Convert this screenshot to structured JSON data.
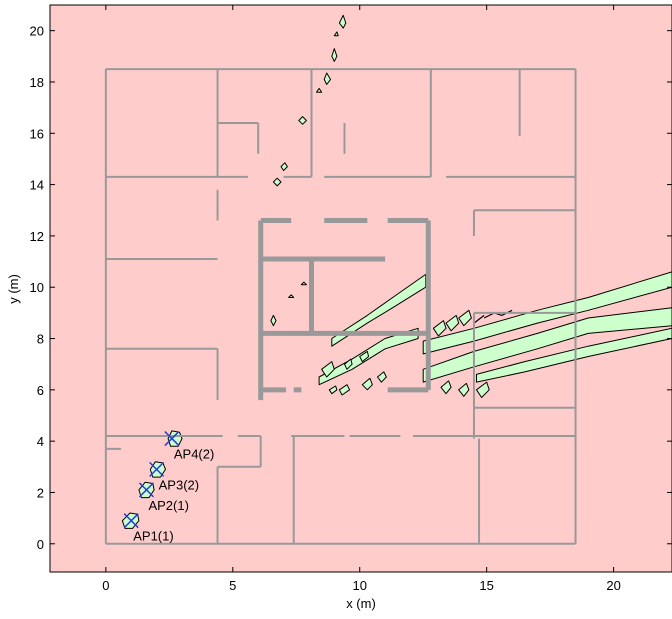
{
  "chart_data": {
    "type": "heatmap",
    "xlabel": "x (m)",
    "ylabel": "y (m)",
    "xlim": [
      -2.2,
      22.3
    ],
    "ylim": [
      -1.1,
      21
    ],
    "x_ticks": [
      0,
      5,
      10,
      15,
      20
    ],
    "y_ticks": [
      0,
      2,
      4,
      6,
      8,
      10,
      12,
      14,
      16,
      18,
      20
    ],
    "grid": false,
    "colors": {
      "background": "#ffcccc",
      "region": "#ccffcc",
      "wall_thin": "#999999",
      "wall_thick": "#999999",
      "ap_marker": "#1f3fd6",
      "contour": "#000000"
    },
    "access_points": [
      {
        "label": "AP1(1)",
        "x": 1.0,
        "y": 0.9
      },
      {
        "label": "AP2(1)",
        "x": 1.6,
        "y": 2.1
      },
      {
        "label": "AP3(2)",
        "x": 2.0,
        "y": 2.9
      },
      {
        "label": "AP4(2)",
        "x": 2.6,
        "y": 4.1
      }
    ],
    "walls_thin": [
      [
        [
          0,
          0
        ],
        [
          18.5,
          0
        ]
      ],
      [
        [
          18.5,
          0
        ],
        [
          18.5,
          18.5
        ]
      ],
      [
        [
          0,
          18.5
        ],
        [
          18.5,
          18.5
        ]
      ],
      [
        [
          0,
          0
        ],
        [
          0,
          18.5
        ]
      ],
      [
        [
          0,
          14.3
        ],
        [
          5.6,
          14.3
        ]
      ],
      [
        [
          7,
          14.3
        ],
        [
          8.1,
          14.3
        ]
      ],
      [
        [
          8.6,
          14.3
        ],
        [
          12.8,
          14.3
        ]
      ],
      [
        [
          13.4,
          14.3
        ],
        [
          18.5,
          14.3
        ]
      ],
      [
        [
          4.4,
          14.3
        ],
        [
          4.4,
          18.5
        ]
      ],
      [
        [
          8.1,
          14.3
        ],
        [
          8.1,
          18.5
        ]
      ],
      [
        [
          12.8,
          14.3
        ],
        [
          12.8,
          18.5
        ]
      ],
      [
        [
          16.3,
          15.9
        ],
        [
          16.3,
          18.5
        ]
      ],
      [
        [
          4.4,
          16.4
        ],
        [
          6,
          16.4
        ]
      ],
      [
        [
          6,
          15.2
        ],
        [
          6,
          16.4
        ]
      ],
      [
        [
          9.4,
          15.2
        ],
        [
          9.4,
          16.4
        ]
      ],
      [
        [
          0,
          11.1
        ],
        [
          4.4,
          11.1
        ]
      ],
      [
        [
          0,
          7.6
        ],
        [
          4.4,
          7.6
        ]
      ],
      [
        [
          4.4,
          12.6
        ],
        [
          4.4,
          13.8
        ]
      ],
      [
        [
          4.4,
          5.6
        ],
        [
          4.4,
          7.6
        ]
      ],
      [
        [
          14.5,
          13.0
        ],
        [
          18.5,
          13.0
        ]
      ],
      [
        [
          14.5,
          12.0
        ],
        [
          14.5,
          13.0
        ]
      ],
      [
        [
          14.5,
          9.0
        ],
        [
          18.5,
          9.0
        ]
      ],
      [
        [
          14.5,
          5.3
        ],
        [
          14.5,
          9.0
        ]
      ],
      [
        [
          14.5,
          5.3
        ],
        [
          18.5,
          5.3
        ]
      ],
      [
        [
          14.5,
          4.1
        ],
        [
          14.5,
          5.3
        ]
      ],
      [
        [
          0,
          4.2
        ],
        [
          4.6,
          4.2
        ]
      ],
      [
        [
          5.2,
          4.2
        ],
        [
          6.1,
          4.2
        ]
      ],
      [
        [
          7.3,
          4.2
        ],
        [
          9.4,
          4.2
        ]
      ],
      [
        [
          9.6,
          4.2
        ],
        [
          11.6,
          4.2
        ]
      ],
      [
        [
          12.1,
          4.2
        ],
        [
          14.6,
          4.2
        ]
      ],
      [
        [
          14.6,
          4.2
        ],
        [
          18.5,
          4.2
        ]
      ],
      [
        [
          6.1,
          3.0
        ],
        [
          6.1,
          4.2
        ]
      ],
      [
        [
          4.4,
          3.0
        ],
        [
          6.1,
          3.0
        ]
      ],
      [
        [
          4.4,
          0
        ],
        [
          4.4,
          3.0
        ]
      ],
      [
        [
          7.4,
          0
        ],
        [
          7.4,
          4.2
        ]
      ],
      [
        [
          14.7,
          0
        ],
        [
          14.7,
          4.1
        ]
      ],
      [
        [
          0,
          3.7
        ],
        [
          0.6,
          3.7
        ]
      ]
    ],
    "walls_thick": [
      [
        [
          6.1,
          5.6
        ],
        [
          6.1,
          12.6
        ]
      ],
      [
        [
          6.1,
          12.6
        ],
        [
          7.3,
          12.6
        ]
      ],
      [
        [
          8.6,
          12.6
        ],
        [
          10.3,
          12.6
        ]
      ],
      [
        [
          11.1,
          12.6
        ],
        [
          12.7,
          12.6
        ]
      ],
      [
        [
          12.7,
          6.0
        ],
        [
          12.7,
          12.6
        ]
      ],
      [
        [
          6.1,
          11.1
        ],
        [
          11.0,
          11.1
        ]
      ],
      [
        [
          8.1,
          8.2
        ],
        [
          8.1,
          11.1
        ]
      ],
      [
        [
          6.1,
          8.2
        ],
        [
          12.7,
          8.2
        ]
      ],
      [
        [
          6.1,
          6.0
        ],
        [
          7.1,
          6.0
        ]
      ],
      [
        [
          7.4,
          6.0
        ],
        [
          7.7,
          6.0
        ]
      ],
      [
        [
          11.1,
          6.0
        ],
        [
          12.7,
          6.0
        ]
      ]
    ],
    "regions": [
      [
        [
          12.5,
          7.4
        ],
        [
          14.5,
          7.9
        ],
        [
          17,
          8.6
        ],
        [
          19,
          9.1
        ],
        [
          22.3,
          10.0
        ],
        [
          22.3,
          10.6
        ],
        [
          19,
          9.6
        ],
        [
          17,
          9.1
        ],
        [
          14.5,
          8.4
        ],
        [
          12.5,
          7.9
        ]
      ],
      [
        [
          12.5,
          6.3
        ],
        [
          14.5,
          6.9
        ],
        [
          17,
          7.6
        ],
        [
          19,
          8.2
        ],
        [
          22.3,
          8.5
        ],
        [
          22.3,
          9.2
        ],
        [
          19,
          8.8
        ],
        [
          17,
          8.2
        ],
        [
          14.5,
          7.5
        ],
        [
          12.5,
          6.8
        ]
      ],
      [
        [
          14.6,
          6.3
        ],
        [
          16.5,
          6.7
        ],
        [
          19,
          7.3
        ],
        [
          22.3,
          8.0
        ],
        [
          22.3,
          8.4
        ],
        [
          19,
          7.7
        ],
        [
          16.5,
          7.1
        ],
        [
          14.6,
          6.6
        ]
      ],
      [
        [
          8.9,
          7.7
        ],
        [
          10.3,
          8.6
        ],
        [
          11.3,
          9.2
        ],
        [
          12.6,
          10.0
        ],
        [
          12.6,
          10.5
        ],
        [
          11.3,
          9.6
        ],
        [
          10.3,
          8.9
        ],
        [
          8.9,
          8.0
        ]
      ],
      [
        [
          8.4,
          6.2
        ],
        [
          9.7,
          6.8
        ],
        [
          11.0,
          7.6
        ],
        [
          12.3,
          8.0
        ],
        [
          12.3,
          8.4
        ],
        [
          11.0,
          8.0
        ],
        [
          9.7,
          7.2
        ],
        [
          8.4,
          6.5
        ]
      ],
      [
        [
          2.45,
          4.1
        ],
        [
          2.6,
          4.4
        ],
        [
          2.9,
          4.35
        ],
        [
          3.0,
          4.1
        ],
        [
          2.85,
          3.8
        ],
        [
          2.55,
          3.8
        ]
      ],
      [
        [
          1.75,
          2.9
        ],
        [
          1.95,
          3.2
        ],
        [
          2.25,
          3.15
        ],
        [
          2.35,
          2.9
        ],
        [
          2.15,
          2.6
        ],
        [
          1.85,
          2.6
        ]
      ],
      [
        [
          1.3,
          2.1
        ],
        [
          1.55,
          2.4
        ],
        [
          1.85,
          2.35
        ],
        [
          1.9,
          2.1
        ],
        [
          1.7,
          1.8
        ],
        [
          1.4,
          1.8
        ]
      ],
      [
        [
          0.65,
          0.9
        ],
        [
          0.95,
          1.2
        ],
        [
          1.25,
          1.15
        ],
        [
          1.3,
          0.9
        ],
        [
          1.05,
          0.6
        ],
        [
          0.75,
          0.6
        ]
      ],
      [
        [
          9.2,
          20.3
        ],
        [
          9.35,
          20.6
        ],
        [
          9.45,
          20.3
        ],
        [
          9.35,
          20.1
        ]
      ],
      [
        [
          9.0,
          19.8
        ],
        [
          9.1,
          19.95
        ],
        [
          9.15,
          19.8
        ]
      ],
      [
        [
          8.9,
          19.0
        ],
        [
          9.0,
          19.3
        ],
        [
          9.1,
          19.0
        ],
        [
          9.0,
          18.8
        ]
      ],
      [
        [
          8.6,
          18.1
        ],
        [
          8.7,
          18.35
        ],
        [
          8.85,
          18.1
        ],
        [
          8.7,
          17.9
        ]
      ],
      [
        [
          8.3,
          17.6
        ],
        [
          8.4,
          17.75
        ],
        [
          8.5,
          17.6
        ]
      ],
      [
        [
          7.6,
          16.5
        ],
        [
          7.75,
          16.65
        ],
        [
          7.9,
          16.5
        ],
        [
          7.75,
          16.35
        ]
      ],
      [
        [
          6.9,
          14.7
        ],
        [
          7.05,
          14.85
        ],
        [
          7.15,
          14.7
        ],
        [
          7.0,
          14.55
        ]
      ],
      [
        [
          6.6,
          14.1
        ],
        [
          6.75,
          14.25
        ],
        [
          6.9,
          14.1
        ],
        [
          6.75,
          13.95
        ]
      ],
      [
        [
          6.5,
          8.7
        ],
        [
          6.6,
          8.9
        ],
        [
          6.7,
          8.7
        ],
        [
          6.6,
          8.5
        ]
      ],
      [
        [
          7.2,
          9.6
        ],
        [
          7.3,
          9.7
        ],
        [
          7.4,
          9.6
        ]
      ],
      [
        [
          7.7,
          10.1
        ],
        [
          7.8,
          10.2
        ],
        [
          7.9,
          10.1
        ]
      ],
      [
        [
          12.9,
          8.4
        ],
        [
          13.3,
          8.7
        ],
        [
          13.4,
          8.4
        ],
        [
          13.1,
          8.1
        ]
      ],
      [
        [
          13.4,
          8.6
        ],
        [
          13.8,
          8.9
        ],
        [
          13.9,
          8.6
        ],
        [
          13.6,
          8.3
        ]
      ],
      [
        [
          13.9,
          8.8
        ],
        [
          14.3,
          9.1
        ],
        [
          14.4,
          8.8
        ],
        [
          14.1,
          8.5
        ]
      ],
      [
        [
          14.6,
          6.0
        ],
        [
          15.0,
          6.3
        ],
        [
          15.1,
          6.0
        ],
        [
          14.8,
          5.7
        ]
      ],
      [
        [
          13.9,
          6.0
        ],
        [
          14.2,
          6.25
        ],
        [
          14.3,
          6.0
        ],
        [
          14.1,
          5.75
        ]
      ],
      [
        [
          13.2,
          6.1
        ],
        [
          13.5,
          6.35
        ],
        [
          13.6,
          6.1
        ],
        [
          13.4,
          5.85
        ]
      ],
      [
        [
          8.5,
          6.8
        ],
        [
          8.9,
          7.1
        ],
        [
          9.0,
          6.8
        ],
        [
          8.7,
          6.5
        ]
      ],
      [
        [
          9.2,
          6.0
        ],
        [
          9.5,
          6.2
        ],
        [
          9.6,
          6.0
        ],
        [
          9.3,
          5.8
        ]
      ],
      [
        [
          8.8,
          6.0
        ],
        [
          9.05,
          6.15
        ],
        [
          9.1,
          6.0
        ],
        [
          8.9,
          5.85
        ]
      ],
      [
        [
          10.1,
          6.2
        ],
        [
          10.4,
          6.45
        ],
        [
          10.5,
          6.2
        ],
        [
          10.3,
          6.0
        ]
      ],
      [
        [
          10.7,
          6.5
        ],
        [
          10.95,
          6.7
        ],
        [
          11.05,
          6.5
        ],
        [
          10.85,
          6.3
        ]
      ],
      [
        [
          9.4,
          7.0
        ],
        [
          9.65,
          7.2
        ],
        [
          9.7,
          7.0
        ],
        [
          9.5,
          6.8
        ]
      ],
      [
        [
          10.0,
          7.3
        ],
        [
          10.3,
          7.5
        ],
        [
          10.35,
          7.3
        ],
        [
          10.1,
          7.1
        ]
      ]
    ],
    "contour_lines": [
      [
        [
          14.9,
          8.8
        ],
        [
          15.3,
          9.0
        ],
        [
          15.6,
          8.9
        ],
        [
          16.0,
          9.1
        ]
      ],
      [
        [
          14.5,
          8.6
        ],
        [
          14.9,
          8.9
        ]
      ]
    ]
  }
}
